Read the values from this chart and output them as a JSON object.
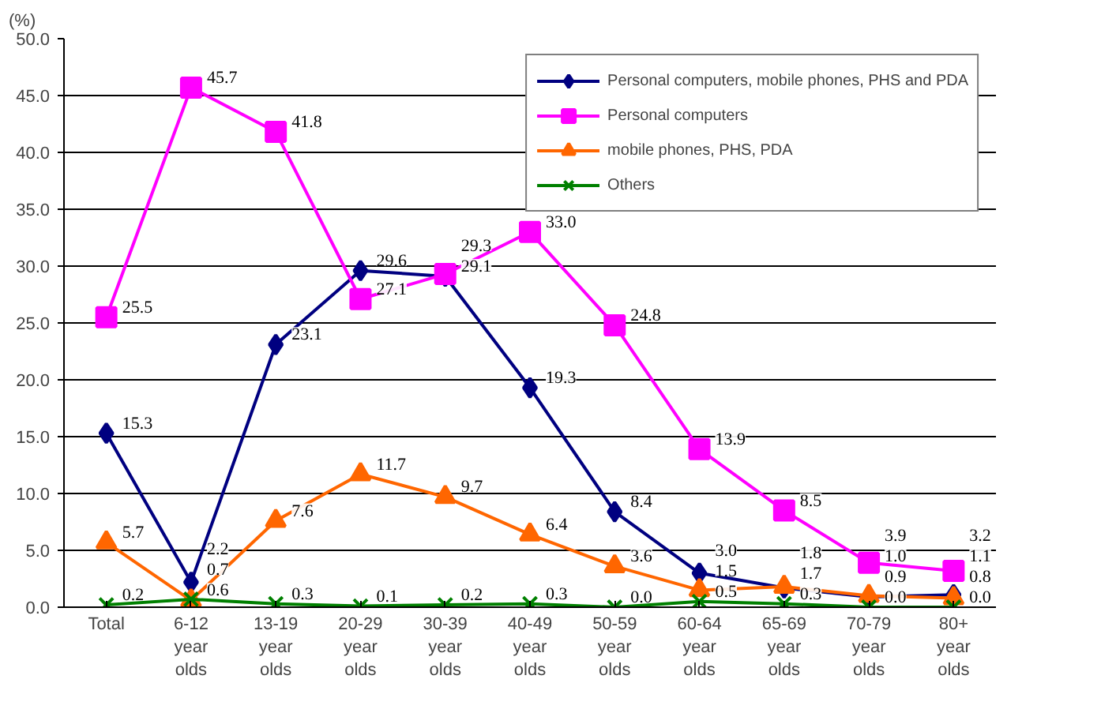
{
  "chart_data": {
    "type": "line",
    "ylabel": "(%)",
    "categories": [
      "Total",
      "6-12 year olds",
      "13-19 year olds",
      "20-29 year olds",
      "30-39 year olds",
      "40-49 year olds",
      "50-59 year olds",
      "60-64 year olds",
      "65-69 year olds",
      "70-79 year olds",
      "80+ year olds"
    ],
    "series": [
      {
        "name": "Personal computers, mobile phones, PHS and PDA",
        "color": "#000080",
        "marker": "diamond",
        "values": [
          15.3,
          2.2,
          23.1,
          29.6,
          29.1,
          19.3,
          8.4,
          3.0,
          1.7,
          0.9,
          1.1
        ],
        "value_labels": [
          "15.3",
          "2.2",
          "23.1",
          "29.6",
          "29.1",
          "19.3",
          "8.4",
          "3.0",
          "1.7",
          "0.9",
          "1.1"
        ]
      },
      {
        "name": "Personal computers",
        "color": "#ff00ff",
        "marker": "square",
        "values": [
          25.5,
          45.7,
          41.8,
          27.1,
          29.3,
          33.0,
          24.8,
          13.9,
          8.5,
          3.9,
          3.2
        ],
        "value_labels": [
          "25.5",
          "45.7",
          "41.8",
          "27.1",
          "29.3",
          "33.0",
          "24.8",
          "13.9",
          "8.5",
          "3.9",
          "3.2"
        ]
      },
      {
        "name": "mobile phones, PHS, PDA",
        "color": "#ff6600",
        "marker": "triangle",
        "values": [
          5.7,
          0.6,
          7.6,
          11.7,
          9.7,
          6.4,
          3.6,
          1.5,
          1.8,
          1.0,
          0.8
        ],
        "value_labels": [
          "5.7",
          "0.6",
          "7.6",
          "11.7",
          "9.7",
          "6.4",
          "3.6",
          "1.5",
          "1.8",
          "1.0",
          "0.8"
        ]
      },
      {
        "name": "Others",
        "color": "#008000",
        "marker": "cross",
        "values": [
          0.2,
          0.7,
          0.3,
          0.1,
          0.2,
          0.3,
          0.0,
          0.5,
          0.3,
          0.0,
          0.0
        ],
        "value_labels": [
          "0.2",
          "0.7",
          "0.3",
          "0.1",
          "0.2",
          "0.3",
          "0.0",
          "0.5",
          "0.3",
          "0.0",
          "0.0"
        ]
      }
    ],
    "ylim": [
      0,
      50
    ],
    "yticks": [
      {
        "value": 0,
        "label": "0.0"
      },
      {
        "value": 5,
        "label": "5.0"
      },
      {
        "value": 10,
        "label": "10.0"
      },
      {
        "value": 15,
        "label": "15.0"
      },
      {
        "value": 20,
        "label": "20.0"
      },
      {
        "value": 25,
        "label": "25.0"
      },
      {
        "value": 30,
        "label": "30.0"
      },
      {
        "value": 35,
        "label": "35.0"
      },
      {
        "value": 40,
        "label": "40.0"
      },
      {
        "value": 45,
        "label": "45.0"
      },
      {
        "value": 50,
        "label": "50.0"
      }
    ],
    "grid": "y",
    "legend": "top right"
  }
}
